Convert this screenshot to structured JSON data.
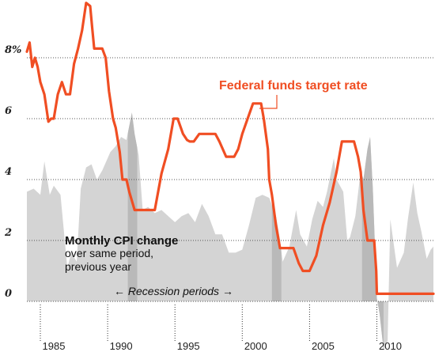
{
  "chart_data": {
    "type": "line",
    "title": "",
    "xlabel": "",
    "ylabel": "",
    "xlim": [
      1983.0,
      2013.2
    ],
    "ylim": [
      -1.0,
      10.0
    ],
    "y_ticks": [
      {
        "value": 8,
        "label": "8%"
      },
      {
        "value": 6,
        "label": "6"
      },
      {
        "value": 4,
        "label": "4"
      },
      {
        "value": 2,
        "label": "2"
      },
      {
        "value": 0,
        "label": "0"
      }
    ],
    "x_ticks": [
      {
        "value": 1985,
        "label": "1985"
      },
      {
        "value": 1990,
        "label": "1990"
      },
      {
        "value": 1995,
        "label": "1995"
      },
      {
        "value": 2000,
        "label": "2000"
      },
      {
        "value": 2005,
        "label": "2005"
      },
      {
        "value": 2010,
        "label": "2010"
      }
    ],
    "year_boundaries": [
      1984,
      1989,
      1994,
      1999,
      2004,
      2009
    ],
    "grid": "horizontal dotted",
    "colors": {
      "rate": "#f04e23",
      "cpi": "#d4d4d4",
      "recession": "#b9b9b9",
      "grid": "#555555"
    },
    "recessions": [
      {
        "start": 1990.5,
        "end": 1991.2
      },
      {
        "start": 2001.2,
        "end": 2001.9
      },
      {
        "start": 2007.9,
        "end": 2009.5
      }
    ],
    "series": [
      {
        "name": "Federal funds target rate",
        "style": "line",
        "x": [
          1983.0,
          1983.2,
          1983.4,
          1983.6,
          1983.8,
          1984.0,
          1984.3,
          1984.6,
          1984.8,
          1985.0,
          1985.3,
          1985.6,
          1985.9,
          1986.2,
          1986.5,
          1986.8,
          1987.1,
          1987.4,
          1987.7,
          1987.85,
          1988.0,
          1988.3,
          1988.6,
          1988.85,
          1989.1,
          1989.4,
          1989.6,
          1989.9,
          1990.1,
          1990.4,
          1990.6,
          1990.8,
          1991.0,
          1991.2,
          1991.4,
          1991.7,
          1992.0,
          1992.3,
          1992.5,
          1993.0,
          1993.5,
          1993.9,
          1994.2,
          1994.6,
          1994.9,
          1995.1,
          1995.4,
          1995.8,
          1996.0,
          1996.5,
          1997.0,
          1997.3,
          1997.8,
          1998.4,
          1998.7,
          1999.0,
          1999.4,
          1999.8,
          2000.0,
          2000.4,
          2000.6,
          2000.9,
          2001.0,
          2001.2,
          2001.5,
          2001.8,
          2002.0,
          2002.3,
          2002.8,
          2003.2,
          2003.5,
          2003.8,
          2004.0,
          2004.5,
          2005.0,
          2005.5,
          2006.0,
          2006.4,
          2006.6,
          2006.9,
          2007.3,
          2007.6,
          2007.8,
          2008.0,
          2008.3,
          2008.8,
          2008.95,
          2009.0,
          2013.2
        ],
        "values": [
          8.2,
          8.5,
          7.7,
          8.0,
          7.7,
          7.2,
          6.8,
          5.9,
          6.0,
          6.0,
          6.8,
          7.2,
          6.8,
          6.8,
          7.8,
          8.3,
          8.9,
          9.8,
          9.7,
          9.0,
          8.3,
          8.3,
          8.3,
          8.0,
          6.9,
          6.0,
          5.7,
          4.9,
          4.0,
          4.0,
          3.6,
          3.3,
          3.0,
          3.0,
          3.0,
          3.0,
          3.0,
          3.0,
          3.0,
          4.2,
          5.0,
          6.0,
          6.0,
          5.5,
          5.3,
          5.25,
          5.25,
          5.5,
          5.5,
          5.5,
          5.5,
          5.25,
          4.75,
          4.75,
          5.0,
          5.5,
          6.0,
          6.5,
          6.5,
          6.5,
          6.0,
          5.0,
          4.0,
          3.5,
          2.5,
          1.75,
          1.75,
          1.75,
          1.75,
          1.25,
          1.0,
          1.0,
          1.0,
          1.5,
          2.5,
          3.25,
          4.25,
          5.25,
          5.25,
          5.25,
          5.25,
          4.75,
          4.25,
          3.0,
          2.0,
          2.0,
          1.0,
          0.25,
          0.25
        ]
      },
      {
        "name": "Monthly CPI change",
        "style": "area",
        "x": [
          1983.0,
          1983.5,
          1984.0,
          1984.3,
          1984.7,
          1985.0,
          1985.5,
          1986.0,
          1986.3,
          1986.7,
          1987.0,
          1987.4,
          1987.8,
          1988.2,
          1988.6,
          1988.9,
          1989.2,
          1989.6,
          1990.0,
          1990.4,
          1990.8,
          1991.0,
          1991.3,
          1991.6,
          1992.0,
          1992.5,
          1993.0,
          1993.5,
          1994.0,
          1994.5,
          1995.0,
          1995.5,
          1996.0,
          1996.5,
          1997.0,
          1997.5,
          1998.0,
          1998.5,
          1999.0,
          1999.5,
          2000.0,
          2000.5,
          2001.0,
          2001.5,
          2001.8,
          2002.0,
          2002.5,
          2003.0,
          2003.3,
          2003.8,
          2004.2,
          2004.6,
          2005.0,
          2005.3,
          2005.8,
          2006.0,
          2006.5,
          2006.8,
          2007.0,
          2007.4,
          2007.8,
          2008.0,
          2008.3,
          2008.5,
          2008.7,
          2009.0,
          2009.2,
          2009.5,
          2009.8,
          2010.0,
          2010.5,
          2011.0,
          2011.3,
          2011.7,
          2012.0,
          2012.3,
          2012.7,
          2013.0,
          2013.2
        ],
        "values": [
          3.6,
          3.7,
          3.5,
          4.6,
          3.5,
          3.8,
          3.5,
          1.1,
          1.6,
          1.3,
          3.7,
          4.4,
          4.5,
          4.0,
          4.3,
          4.6,
          4.9,
          5.1,
          5.4,
          5.3,
          6.2,
          5.5,
          4.8,
          3.0,
          3.1,
          2.9,
          3.0,
          2.8,
          2.6,
          2.8,
          2.9,
          2.6,
          3.2,
          2.8,
          2.2,
          2.2,
          1.6,
          1.6,
          1.7,
          2.5,
          3.4,
          3.5,
          3.4,
          2.8,
          2.0,
          1.3,
          1.8,
          3.0,
          2.2,
          1.8,
          2.7,
          3.3,
          3.1,
          3.6,
          4.7,
          4.0,
          3.6,
          2.0,
          2.1,
          2.8,
          4.3,
          4.0,
          5.0,
          5.4,
          3.7,
          0.1,
          -0.4,
          -1.6,
          -1.3,
          2.7,
          1.1,
          1.6,
          2.7,
          3.9,
          2.9,
          2.3,
          1.4,
          1.7,
          1.8
        ]
      }
    ],
    "annotations": {
      "rate_label": "Federal funds target rate",
      "cpi_title": "Monthly CPI change",
      "cpi_sub_1": "over same period,",
      "cpi_sub_2": "previous year",
      "recession_label": "← Recession periods →"
    }
  }
}
